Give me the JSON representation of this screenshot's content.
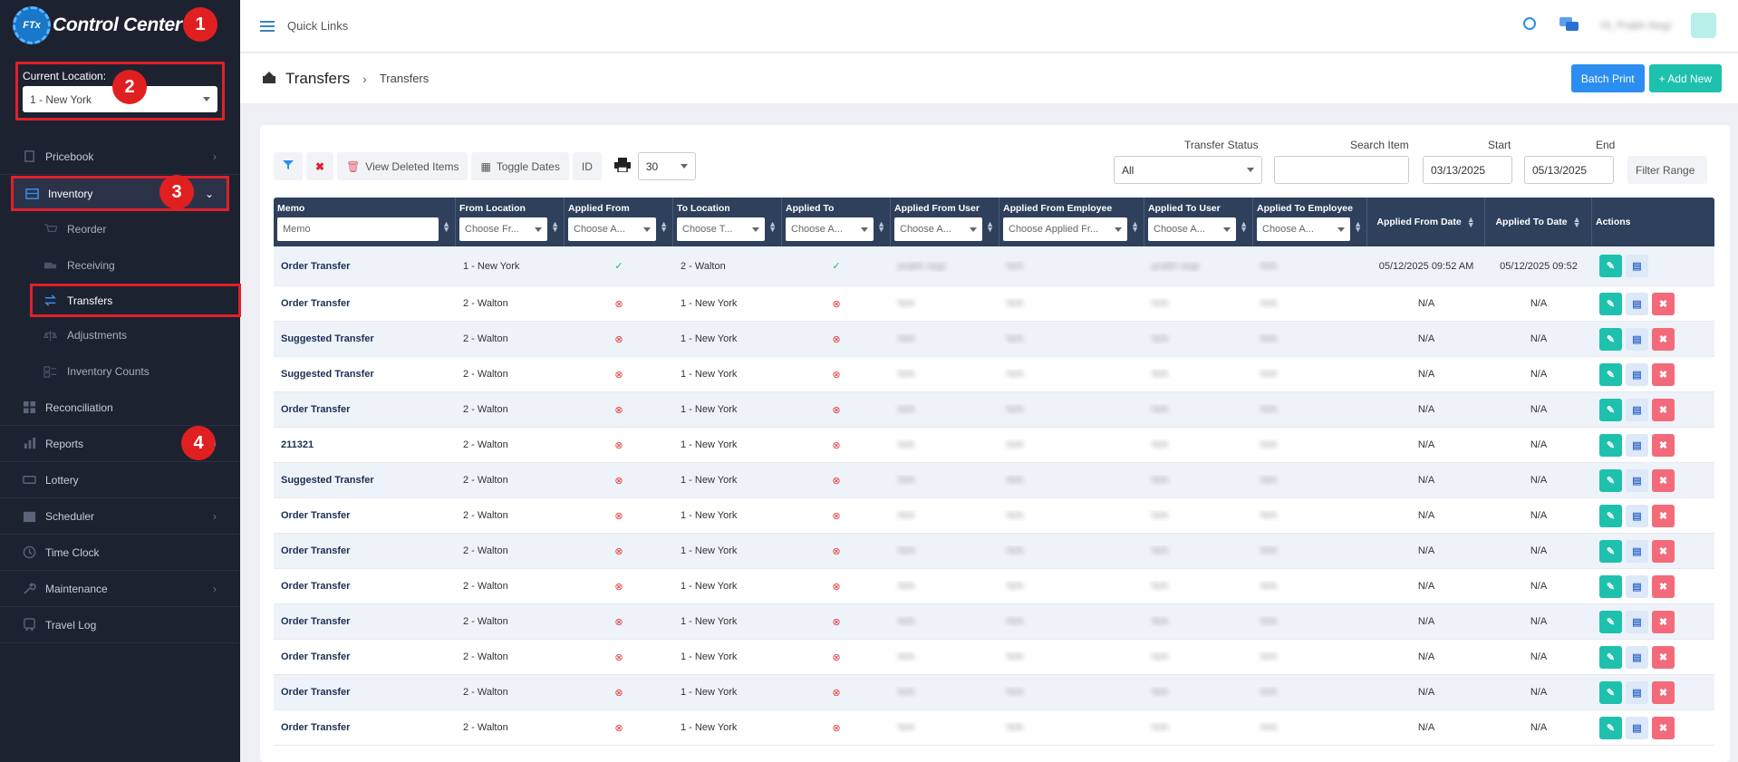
{
  "sidebar": {
    "app_title": "Control Center",
    "logo_text": "FTx",
    "location_label": "Current Location:",
    "location_value": "1 - New York",
    "items": {
      "pricebook": "Pricebook",
      "inventory": "Inventory",
      "reorder": "Reorder",
      "receiving": "Receiving",
      "transfers": "Transfers",
      "adjustments": "Adjustments",
      "inventory_counts": "Inventory Counts",
      "reconciliation": "Reconciliation",
      "reports": "Reports",
      "lottery": "Lottery",
      "scheduler": "Scheduler",
      "time_clock": "Time Clock",
      "maintenance": "Maintenance",
      "travel_log": "Travel Log"
    }
  },
  "annotations": [
    "1",
    "2",
    "3",
    "4"
  ],
  "topbar": {
    "quick_links": "Quick Links",
    "user_name": "Hi, Prabh Negi"
  },
  "page": {
    "title": "Transfers",
    "breadcrumb": "Transfers",
    "batch_print": "Batch Print",
    "add_new": "+ Add New"
  },
  "toolbar": {
    "view_deleted": "View Deleted Items",
    "toggle_dates": "Toggle Dates",
    "id": "ID",
    "page_size": "30"
  },
  "filters": {
    "status_label": "Transfer Status",
    "status_value": "All",
    "search_label": "Search Item",
    "search_value": "",
    "start_label": "Start",
    "start_value": "03/13/2025",
    "end_label": "End",
    "end_value": "05/13/2025",
    "range_button": "Filter Range"
  },
  "table": {
    "headers": {
      "memo": "Memo",
      "memo_placeholder": "Memo",
      "from_location": "From Location",
      "from_location_ph": "Choose Fr...",
      "applied_from": "Applied From",
      "applied_from_ph": "Choose A...",
      "to_location": "To Location",
      "to_location_ph": "Choose T...",
      "applied_to": "Applied To",
      "applied_to_ph": "Choose A...",
      "applied_from_user": "Applied From User",
      "applied_from_user_ph": "Choose A...",
      "applied_from_employee": "Applied From Employee",
      "applied_from_employee_ph": "Choose Applied Fr...",
      "applied_to_user": "Applied To User",
      "applied_to_user_ph": "Choose A...",
      "applied_to_employee": "Applied To Employee",
      "applied_to_employee_ph": "Choose A...",
      "applied_from_date": "Applied From Date",
      "applied_to_date": "Applied To Date",
      "actions": "Actions"
    },
    "rows": [
      {
        "memo": "Order Transfer",
        "from": "1 - New York",
        "applied_from": "ok",
        "to": "2 - Walton",
        "applied_to": "ok",
        "from_user": "prabh negi",
        "from_emp": "N/A",
        "to_user": "prabh negi",
        "to_emp": "N/A",
        "from_date": "05/12/2025 09:52 AM",
        "to_date": "05/12/2025 09:52",
        "deletable": false
      },
      {
        "memo": "Order Transfer",
        "from": "2 - Walton",
        "applied_from": "x",
        "to": "1 - New York",
        "applied_to": "x",
        "from_user": "N/A",
        "from_emp": "N/A",
        "to_user": "N/A",
        "to_emp": "N/A",
        "from_date": "N/A",
        "to_date": "N/A",
        "deletable": true
      },
      {
        "memo": "Suggested Transfer",
        "from": "2 - Walton",
        "applied_from": "x",
        "to": "1 - New York",
        "applied_to": "x",
        "from_user": "N/A",
        "from_emp": "N/A",
        "to_user": "N/A",
        "to_emp": "N/A",
        "from_date": "N/A",
        "to_date": "N/A",
        "deletable": true
      },
      {
        "memo": "Suggested Transfer",
        "from": "2 - Walton",
        "applied_from": "x",
        "to": "1 - New York",
        "applied_to": "x",
        "from_user": "N/A",
        "from_emp": "N/A",
        "to_user": "N/A",
        "to_emp": "N/A",
        "from_date": "N/A",
        "to_date": "N/A",
        "deletable": true
      },
      {
        "memo": "Order Transfer",
        "from": "2 - Walton",
        "applied_from": "x",
        "to": "1 - New York",
        "applied_to": "x",
        "from_user": "N/A",
        "from_emp": "N/A",
        "to_user": "N/A",
        "to_emp": "N/A",
        "from_date": "N/A",
        "to_date": "N/A",
        "deletable": true
      },
      {
        "memo": "211321",
        "from": "2 - Walton",
        "applied_from": "x",
        "to": "1 - New York",
        "applied_to": "x",
        "from_user": "N/A",
        "from_emp": "N/A",
        "to_user": "N/A",
        "to_emp": "N/A",
        "from_date": "N/A",
        "to_date": "N/A",
        "deletable": true
      },
      {
        "memo": "Suggested Transfer",
        "from": "2 - Walton",
        "applied_from": "x",
        "to": "1 - New York",
        "applied_to": "x",
        "from_user": "N/A",
        "from_emp": "N/A",
        "to_user": "N/A",
        "to_emp": "N/A",
        "from_date": "N/A",
        "to_date": "N/A",
        "deletable": true
      },
      {
        "memo": "Order Transfer",
        "from": "2 - Walton",
        "applied_from": "x",
        "to": "1 - New York",
        "applied_to": "x",
        "from_user": "N/A",
        "from_emp": "N/A",
        "to_user": "N/A",
        "to_emp": "N/A",
        "from_date": "N/A",
        "to_date": "N/A",
        "deletable": true
      },
      {
        "memo": "Order Transfer",
        "from": "2 - Walton",
        "applied_from": "x",
        "to": "1 - New York",
        "applied_to": "x",
        "from_user": "N/A",
        "from_emp": "N/A",
        "to_user": "N/A",
        "to_emp": "N/A",
        "from_date": "N/A",
        "to_date": "N/A",
        "deletable": true
      },
      {
        "memo": "Order Transfer",
        "from": "2 - Walton",
        "applied_from": "x",
        "to": "1 - New York",
        "applied_to": "x",
        "from_user": "N/A",
        "from_emp": "N/A",
        "to_user": "N/A",
        "to_emp": "N/A",
        "from_date": "N/A",
        "to_date": "N/A",
        "deletable": true
      },
      {
        "memo": "Order Transfer",
        "from": "2 - Walton",
        "applied_from": "x",
        "to": "1 - New York",
        "applied_to": "x",
        "from_user": "N/A",
        "from_emp": "N/A",
        "to_user": "N/A",
        "to_emp": "N/A",
        "from_date": "N/A",
        "to_date": "N/A",
        "deletable": true
      },
      {
        "memo": "Order Transfer",
        "from": "2 - Walton",
        "applied_from": "x",
        "to": "1 - New York",
        "applied_to": "x",
        "from_user": "N/A",
        "from_emp": "N/A",
        "to_user": "N/A",
        "to_emp": "N/A",
        "from_date": "N/A",
        "to_date": "N/A",
        "deletable": true
      },
      {
        "memo": "Order Transfer",
        "from": "2 - Walton",
        "applied_from": "x",
        "to": "1 - New York",
        "applied_to": "x",
        "from_user": "N/A",
        "from_emp": "N/A",
        "to_user": "N/A",
        "to_emp": "N/A",
        "from_date": "N/A",
        "to_date": "N/A",
        "deletable": true
      },
      {
        "memo": "Order Transfer",
        "from": "2 - Walton",
        "applied_from": "x",
        "to": "1 - New York",
        "applied_to": "x",
        "from_user": "N/A",
        "from_emp": "N/A",
        "to_user": "N/A",
        "to_emp": "N/A",
        "from_date": "N/A",
        "to_date": "N/A",
        "deletable": true
      }
    ]
  },
  "colors": {
    "sidebar_bg": "#1d2230",
    "table_header": "#2e405c",
    "accent_blue": "#2c8ef0",
    "accent_teal": "#1ec1ad",
    "annotation_red": "#e02020"
  }
}
